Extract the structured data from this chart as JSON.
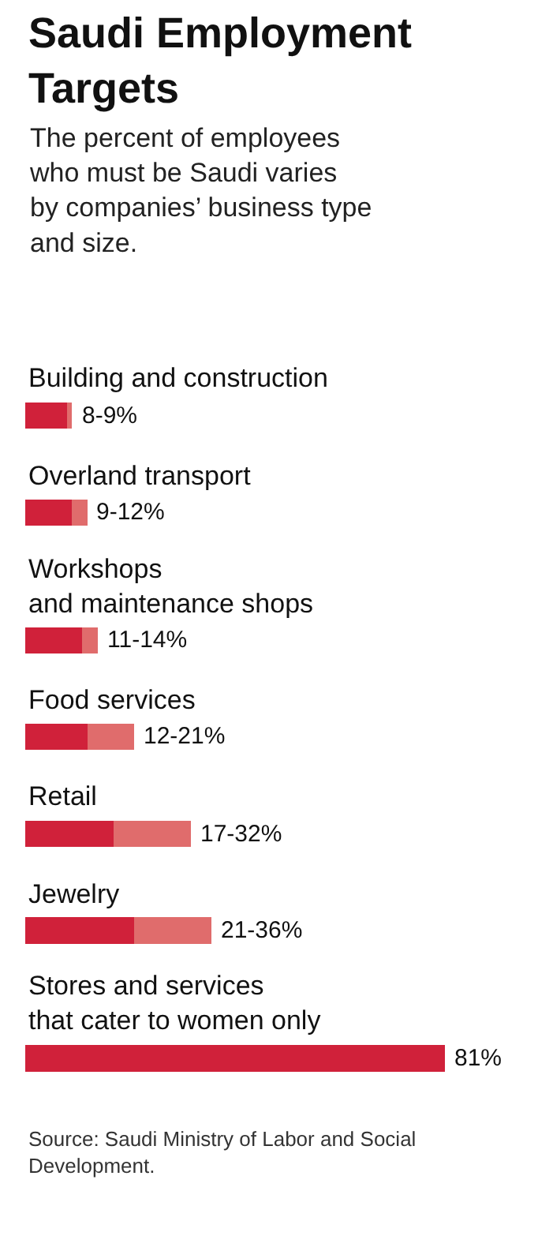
{
  "chart_data": {
    "type": "bar",
    "orientation": "horizontal",
    "stacked": true,
    "title": "Saudi Employment\nTargets",
    "subtitle": "The percent of employees\nwho must be Saudi varies\nby companies’ business type\nand size.",
    "categories": [
      "Building and construction",
      "Overland transport",
      "Workshops\nand maintenance shops",
      "Food services",
      "Retail",
      "Jewelry",
      "Stores and services\nthat cater to women only"
    ],
    "series": [
      {
        "color": "#d0213a",
        "values": [
          8,
          9,
          11,
          12,
          17,
          21,
          81
        ],
        "value_labels": [
          "8-",
          "9-",
          "11-",
          "12-",
          "17-",
          "21-",
          "81%"
        ]
      },
      {
        "color": "#e06c6c",
        "values": [
          1,
          3,
          3,
          9,
          15,
          15,
          null
        ]
      }
    ],
    "totals": [
      "9%",
      "12%",
      "14%",
      "21%",
      "32%",
      "36%",
      null
    ],
    "annotations": [
      "Source: Saudi Ministry of Labor and Social Development."
    ]
  }
}
